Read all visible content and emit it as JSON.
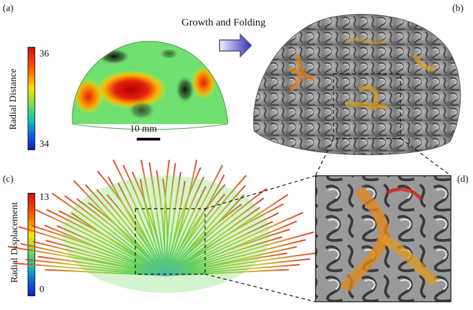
{
  "panels": {
    "a": "(a)",
    "b": "(b)",
    "c": "(c)",
    "d": "(d)"
  },
  "arrow_label": "Growth and Folding",
  "colorbar_top": {
    "label": "Radial Distance",
    "max": "36",
    "min": "34",
    "colors": [
      "#d01010",
      "#ffe000",
      "#60e060",
      "#10a0e0",
      "#1020c0"
    ]
  },
  "colorbar_bottom": {
    "label": "Radial Displacement",
    "max": "13",
    "min": "0",
    "colors": [
      "#d01010",
      "#ffe000",
      "#60e060",
      "#10a0e0",
      "#1020c0"
    ]
  },
  "scale_bar": "10 mm"
}
